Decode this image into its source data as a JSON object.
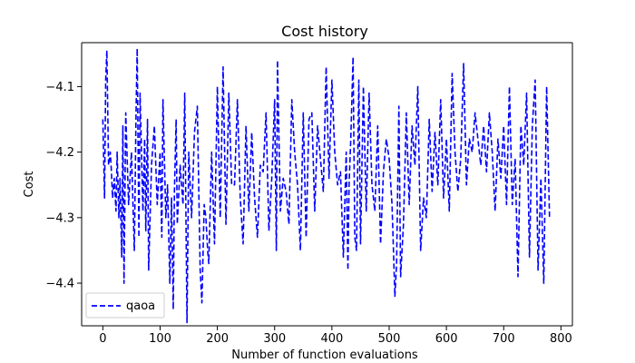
{
  "chart_data": {
    "type": "line",
    "title": "Cost history",
    "xlabel": "Number of function evaluations",
    "ylabel": "Cost",
    "xlim": [
      -37,
      820
    ],
    "ylim": [
      -4.465,
      -4.033
    ],
    "xticks": [
      0,
      100,
      200,
      300,
      400,
      500,
      600,
      700,
      800
    ],
    "xtick_labels": [
      "0",
      "100",
      "200",
      "300",
      "400",
      "500",
      "600",
      "700",
      "800"
    ],
    "yticks": [
      -4.4,
      -4.3,
      -4.2,
      -4.1
    ],
    "ytick_labels": [
      "−4.4",
      "−4.3",
      "−4.2",
      "−4.1"
    ],
    "grid": false,
    "legend_position": "lower-left",
    "series": [
      {
        "name": "qaoa",
        "color": "#0000ff",
        "line_style": "dashed",
        "points": [
          [
            0,
            -4.15
          ],
          [
            3,
            -4.27
          ],
          [
            5,
            -4.09
          ],
          [
            7,
            -4.045
          ],
          [
            10,
            -4.22
          ],
          [
            13,
            -4.2
          ],
          [
            15,
            -4.23
          ],
          [
            17,
            -4.27
          ],
          [
            20,
            -4.24
          ],
          [
            23,
            -4.29
          ],
          [
            25,
            -4.2
          ],
          [
            28,
            -4.3
          ],
          [
            30,
            -4.24
          ],
          [
            33,
            -4.36
          ],
          [
            35,
            -4.16
          ],
          [
            37,
            -4.4
          ],
          [
            40,
            -4.14
          ],
          [
            45,
            -4.28
          ],
          [
            50,
            -4.2
          ],
          [
            55,
            -4.35
          ],
          [
            58,
            -4.14
          ],
          [
            60,
            -4.042
          ],
          [
            63,
            -4.33
          ],
          [
            65,
            -4.11
          ],
          [
            70,
            -4.29
          ],
          [
            73,
            -4.18
          ],
          [
            75,
            -4.32
          ],
          [
            78,
            -4.15
          ],
          [
            80,
            -4.38
          ],
          [
            85,
            -4.22
          ],
          [
            90,
            -4.16
          ],
          [
            95,
            -4.28
          ],
          [
            100,
            -4.2
          ],
          [
            103,
            -4.33
          ],
          [
            105,
            -4.12
          ],
          [
            110,
            -4.3
          ],
          [
            113,
            -4.25
          ],
          [
            117,
            -4.4
          ],
          [
            120,
            -4.27
          ],
          [
            123,
            -4.44
          ],
          [
            125,
            -4.26
          ],
          [
            128,
            -4.15
          ],
          [
            130,
            -4.31
          ],
          [
            135,
            -4.22
          ],
          [
            140,
            -4.28
          ],
          [
            143,
            -4.11
          ],
          [
            147,
            -4.46
          ],
          [
            150,
            -4.2
          ],
          [
            155,
            -4.3
          ],
          [
            160,
            -4.17
          ],
          [
            165,
            -4.13
          ],
          [
            170,
            -4.38
          ],
          [
            173,
            -4.43
          ],
          [
            177,
            -4.28
          ],
          [
            180,
            -4.3
          ],
          [
            183,
            -4.35
          ],
          [
            185,
            -4.37
          ],
          [
            190,
            -4.2
          ],
          [
            195,
            -4.34
          ],
          [
            200,
            -4.1
          ],
          [
            205,
            -4.3
          ],
          [
            210,
            -4.07
          ],
          [
            215,
            -4.31
          ],
          [
            220,
            -4.11
          ],
          [
            225,
            -4.25
          ],
          [
            230,
            -4.25
          ],
          [
            235,
            -4.12
          ],
          [
            240,
            -4.27
          ],
          [
            245,
            -4.34
          ],
          [
            250,
            -4.16
          ],
          [
            255,
            -4.29
          ],
          [
            260,
            -4.17
          ],
          [
            265,
            -4.27
          ],
          [
            270,
            -4.33
          ],
          [
            275,
            -4.22
          ],
          [
            280,
            -4.23
          ],
          [
            285,
            -4.14
          ],
          [
            290,
            -4.32
          ],
          [
            295,
            -4.24
          ],
          [
            300,
            -4.12
          ],
          [
            303,
            -4.35
          ],
          [
            305,
            -4.06
          ],
          [
            310,
            -4.29
          ],
          [
            315,
            -4.24
          ],
          [
            320,
            -4.26
          ],
          [
            325,
            -4.31
          ],
          [
            330,
            -4.12
          ],
          [
            335,
            -4.2
          ],
          [
            340,
            -4.25
          ],
          [
            345,
            -4.35
          ],
          [
            350,
            -4.14
          ],
          [
            355,
            -4.33
          ],
          [
            360,
            -4.15
          ],
          [
            365,
            -4.14
          ],
          [
            370,
            -4.29
          ],
          [
            375,
            -4.16
          ],
          [
            380,
            -4.21
          ],
          [
            385,
            -4.26
          ],
          [
            390,
            -4.07
          ],
          [
            395,
            -4.24
          ],
          [
            400,
            -4.09
          ],
          [
            405,
            -4.2
          ],
          [
            410,
            -4.25
          ],
          [
            415,
            -4.23
          ],
          [
            420,
            -4.36
          ],
          [
            425,
            -4.2
          ],
          [
            428,
            -4.38
          ],
          [
            430,
            -4.25
          ],
          [
            433,
            -4.18
          ],
          [
            437,
            -4.055
          ],
          [
            440,
            -4.33
          ],
          [
            443,
            -4.35
          ],
          [
            447,
            -4.09
          ],
          [
            450,
            -4.34
          ],
          [
            455,
            -4.1
          ],
          [
            460,
            -4.29
          ],
          [
            465,
            -4.11
          ],
          [
            470,
            -4.25
          ],
          [
            475,
            -4.29
          ],
          [
            480,
            -4.16
          ],
          [
            485,
            -4.34
          ],
          [
            490,
            -4.23
          ],
          [
            495,
            -4.18
          ],
          [
            500,
            -4.21
          ],
          [
            505,
            -4.28
          ],
          [
            510,
            -4.42
          ],
          [
            513,
            -4.37
          ],
          [
            517,
            -4.13
          ],
          [
            520,
            -4.39
          ],
          [
            525,
            -4.31
          ],
          [
            530,
            -4.14
          ],
          [
            535,
            -4.28
          ],
          [
            540,
            -4.16
          ],
          [
            545,
            -4.22
          ],
          [
            550,
            -4.1
          ],
          [
            555,
            -4.35
          ],
          [
            560,
            -4.27
          ],
          [
            565,
            -4.3
          ],
          [
            570,
            -4.15
          ],
          [
            575,
            -4.26
          ],
          [
            580,
            -4.17
          ],
          [
            585,
            -4.25
          ],
          [
            590,
            -4.12
          ],
          [
            595,
            -4.27
          ],
          [
            600,
            -4.18
          ],
          [
            605,
            -4.29
          ],
          [
            610,
            -4.08
          ],
          [
            615,
            -4.2
          ],
          [
            620,
            -4.26
          ],
          [
            625,
            -4.21
          ],
          [
            630,
            -4.065
          ],
          [
            635,
            -4.25
          ],
          [
            640,
            -4.18
          ],
          [
            645,
            -4.2
          ],
          [
            650,
            -4.14
          ],
          [
            655,
            -4.18
          ],
          [
            660,
            -4.22
          ],
          [
            665,
            -4.16
          ],
          [
            670,
            -4.23
          ],
          [
            675,
            -4.14
          ],
          [
            680,
            -4.2
          ],
          [
            685,
            -4.29
          ],
          [
            690,
            -4.18
          ],
          [
            695,
            -4.24
          ],
          [
            700,
            -4.16
          ],
          [
            705,
            -4.28
          ],
          [
            710,
            -4.1
          ],
          [
            715,
            -4.28
          ],
          [
            720,
            -4.21
          ],
          [
            725,
            -4.39
          ],
          [
            730,
            -4.16
          ],
          [
            735,
            -4.22
          ],
          [
            740,
            -4.11
          ],
          [
            745,
            -4.36
          ],
          [
            750,
            -4.16
          ],
          [
            755,
            -4.09
          ],
          [
            760,
            -4.38
          ],
          [
            765,
            -4.24
          ],
          [
            770,
            -4.4
          ],
          [
            775,
            -4.1
          ],
          [
            780,
            -4.3
          ]
        ]
      }
    ]
  }
}
